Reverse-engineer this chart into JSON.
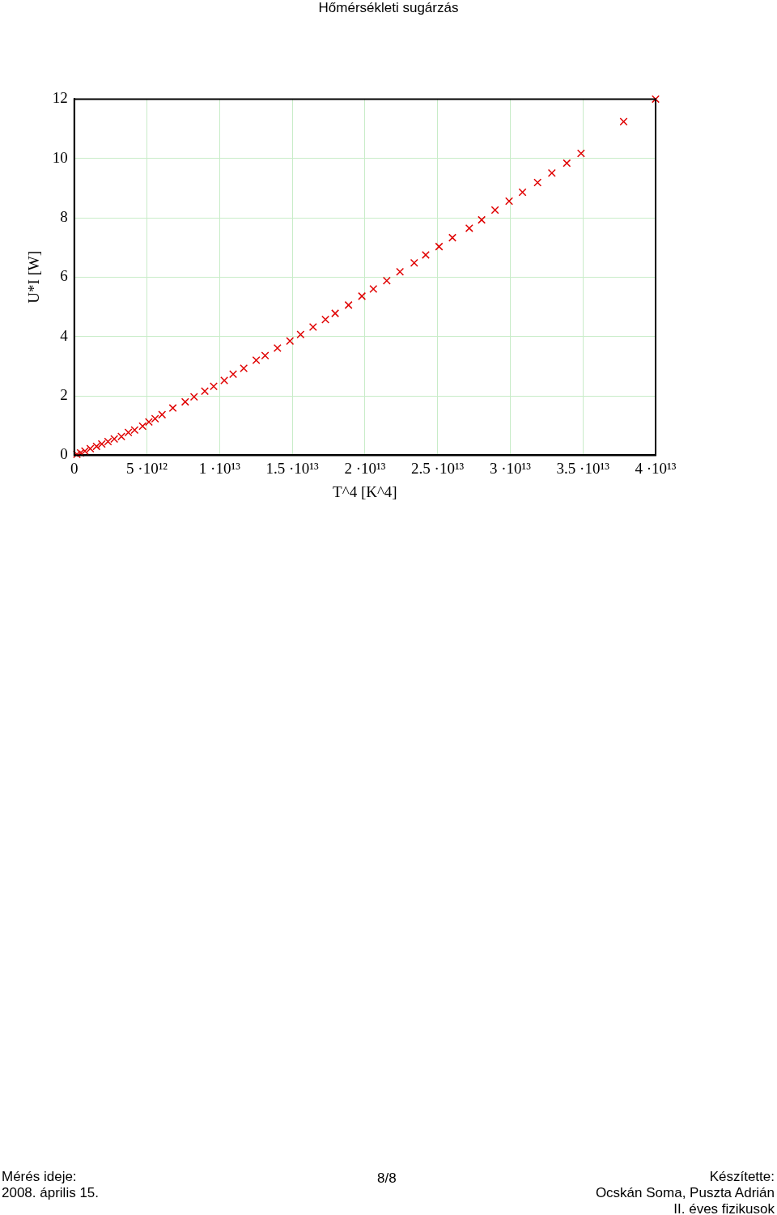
{
  "chart_data": {
    "type": "scatter",
    "title": "Hőmérsékleti sugárzás",
    "xlabel": "T^4 [K^4]",
    "ylabel": "U*I [W]",
    "x": [
      180000000000.0,
      430000000000.0,
      730000000000.0,
      1100000000000.0,
      1530000000000.0,
      1890000000000.0,
      2320000000000.0,
      2750000000000.0,
      3240000000000.0,
      3720000000000.0,
      4150000000000.0,
      4700000000000.0,
      5130000000000.0,
      5560000000000.0,
      6040000000000.0,
      6780000000000.0,
      7630000000000.0,
      8240000000000.0,
      8980000000000.0,
      9590000000000.0,
      10320000000000.0,
      10930000000000.0,
      11660000000000.0,
      12520000000000.0,
      13130000000000.0,
      13980000000000.0,
      14840000000000.0,
      15570000000000.0,
      16430000000000.0,
      17280000000000.0,
      17950000000000.0,
      18870000000000.0,
      19790000000000.0,
      20580000000000.0,
      21500000000000.0,
      22410000000000.0,
      23390000000000.0,
      24180000000000.0,
      25100000000000.0,
      26020000000000.0,
      27180000000000.0,
      28030000000000.0,
      28950000000000.0,
      29920000000000.0,
      30840000000000.0,
      31880000000000.0,
      32860000000000.0,
      33890000000000.0,
      34870000000000.0,
      37800000000000.0,
      40000000000000.0
    ],
    "series": [
      {
        "color": "#e00000",
        "values": [
          0.03,
          0.08,
          0.14,
          0.22,
          0.3,
          0.38,
          0.46,
          0.55,
          0.63,
          0.77,
          0.85,
          0.98,
          1.12,
          1.23,
          1.37,
          1.59,
          1.8,
          1.97,
          2.16,
          2.32,
          2.52,
          2.73,
          2.93,
          3.2,
          3.36,
          3.61,
          3.85,
          4.07,
          4.32,
          4.57,
          4.78,
          5.06,
          5.36,
          5.6,
          5.88,
          6.18,
          6.48,
          6.75,
          7.03,
          7.33,
          7.65,
          7.93,
          8.26,
          8.56,
          8.86,
          9.19,
          9.51,
          9.84,
          10.17,
          11.24,
          12.0
        ]
      }
    ],
    "xlim": [
      0,
      40000000000000.0
    ],
    "xticks": [
      0,
      {
        "value": 5000000000000.0,
        "label": "5 ·10¹²"
      },
      {
        "value": 10000000000000.0,
        "label": "1 ·10¹³"
      },
      {
        "value": 15000000000000.0,
        "label": "1.5 ·10¹³"
      },
      {
        "value": 20000000000000.0,
        "label": "2 ·10¹³"
      },
      {
        "value": 25000000000000.0,
        "label": "2.5 ·10¹³"
      },
      {
        "value": 30000000000000.0,
        "label": "3 ·10¹³"
      },
      {
        "value": 35000000000000.0,
        "label": "3.5 ·10¹³"
      },
      {
        "value": 40000000000000.0,
        "label": "4 ·10¹³"
      }
    ],
    "ylim": [
      0,
      12
    ],
    "yticks": [
      0,
      2,
      4,
      6,
      8,
      10,
      12
    ],
    "grid": true,
    "legend": false,
    "marker": "cross",
    "annotations": [
      "Mérés ideje:",
      "2008. április 15.",
      "8/8",
      "Készítette:",
      "Ocskán Soma, Puszta Adrián",
      "II. éves fizikusok"
    ]
  }
}
